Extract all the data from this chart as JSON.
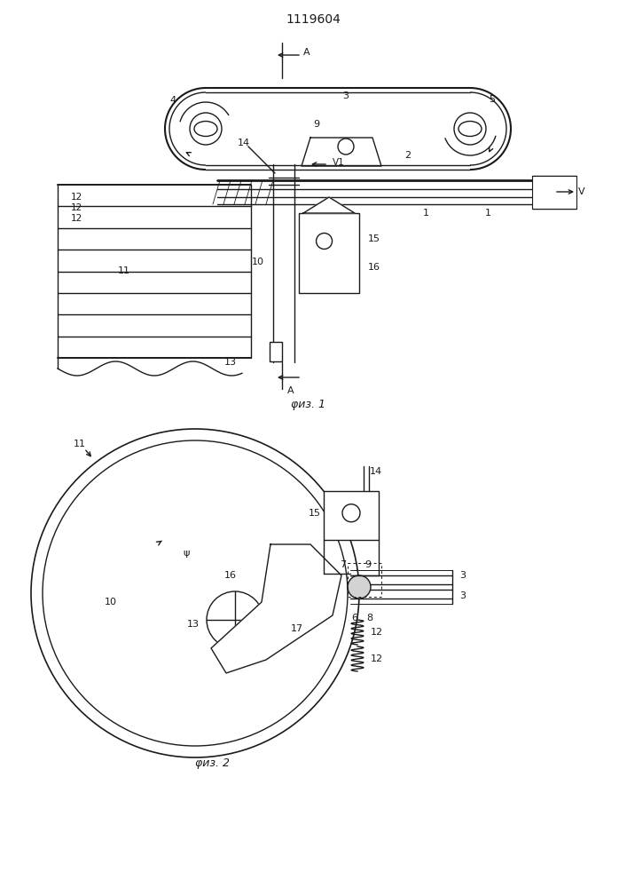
{
  "title": "1119604",
  "fig1_caption": "φиз. 1",
  "fig2_caption": "φиз. 2",
  "bg_color": "#ffffff",
  "line_color": "#1a1a1a",
  "lw": 1.0
}
